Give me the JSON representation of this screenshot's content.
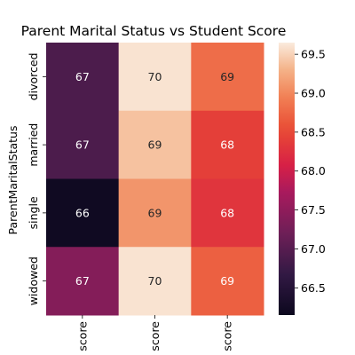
{
  "chart_data": {
    "type": "heatmap",
    "title": "Parent Marital Status vs Student Score",
    "xlabel": "",
    "ylabel": "ParentMaritalStatus",
    "row_labels": [
      "divorced",
      "married",
      "single",
      "widowed"
    ],
    "column_labels": [
      "score",
      "score",
      "score"
    ],
    "values": [
      [
        66.9,
        69.6,
        68.8
      ],
      [
        66.9,
        69.4,
        68.4
      ],
      [
        66.2,
        69.1,
        68.3
      ],
      [
        67.4,
        69.6,
        68.7
      ]
    ],
    "cell_labels": [
      [
        "67",
        "70",
        "69"
      ],
      [
        "67",
        "69",
        "68"
      ],
      [
        "66",
        "69",
        "68"
      ],
      [
        "67",
        "70",
        "69"
      ]
    ],
    "colorbar": {
      "range": [
        66.15,
        69.65
      ],
      "ticks": [
        66.5,
        67.0,
        67.5,
        68.0,
        68.5,
        69.0,
        69.5
      ],
      "tick_labels": [
        "66.5",
        "67.0",
        "67.5",
        "68.0",
        "68.5",
        "69.0",
        "69.5"
      ],
      "colormap": "rocket"
    }
  }
}
